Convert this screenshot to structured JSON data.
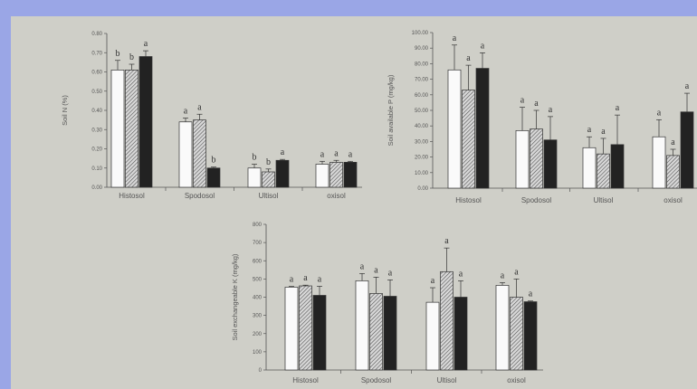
{
  "chart_data": [
    {
      "type": "bar",
      "ylabel": "Soil N (%)",
      "categories": [
        "Histosol",
        "Spodosol",
        "Ultisol",
        "oxisol"
      ],
      "yticks": [
        "0.00",
        "0.10",
        "0.20",
        "0.30",
        "0.40",
        "0.50",
        "0.60",
        "0.70",
        "0.80"
      ],
      "ylim": [
        0,
        0.8
      ],
      "series_styles": [
        "white",
        "hatched",
        "black"
      ],
      "values": [
        [
          0.61,
          0.61,
          0.68
        ],
        [
          0.34,
          0.35,
          0.1
        ],
        [
          0.1,
          0.08,
          0.14
        ],
        [
          0.12,
          0.13,
          0.13
        ]
      ],
      "errors": [
        [
          0.05,
          0.03,
          0.03
        ],
        [
          0.02,
          0.03,
          0.005
        ],
        [
          0.02,
          0.015,
          0.005
        ],
        [
          0.015,
          0.01,
          0.005
        ]
      ],
      "letters": [
        [
          "b",
          "b",
          "a"
        ],
        [
          "a",
          "a",
          "b"
        ],
        [
          "b",
          "b",
          "a"
        ],
        [
          "a",
          "a",
          "a"
        ]
      ]
    },
    {
      "type": "bar",
      "ylabel": "Soil available P (mg/kg)",
      "categories": [
        "Histosol",
        "Spodosol",
        "Ultisol",
        "oxisol"
      ],
      "yticks": [
        "0.00",
        "10.00",
        "20.00",
        "30.00",
        "40.00",
        "50.00",
        "60.00",
        "70.00",
        "80.00",
        "90.00",
        "100.00"
      ],
      "ylim": [
        0,
        100
      ],
      "series_styles": [
        "white",
        "hatched",
        "black"
      ],
      "values": [
        [
          76,
          63,
          77
        ],
        [
          37,
          38,
          31
        ],
        [
          26,
          22,
          28
        ],
        [
          33,
          21,
          49
        ]
      ],
      "errors": [
        [
          16,
          16,
          10
        ],
        [
          15,
          12,
          15
        ],
        [
          7,
          10,
          19
        ],
        [
          11,
          4,
          12
        ]
      ],
      "letters": [
        [
          "a",
          "a",
          "a"
        ],
        [
          "a",
          "a",
          "a"
        ],
        [
          "a",
          "a",
          "a"
        ],
        [
          "a",
          "a",
          "a"
        ]
      ]
    },
    {
      "type": "bar",
      "ylabel": "Soil exchangeable K (mg/kg)",
      "categories": [
        "Histosol",
        "Spodosol",
        "Ultisol",
        "oxisol"
      ],
      "yticks": [
        "0",
        "100",
        "200",
        "300",
        "400",
        "500",
        "600",
        "700",
        "800"
      ],
      "ylim": [
        0,
        800
      ],
      "series_styles": [
        "white",
        "hatched",
        "black"
      ],
      "values": [
        [
          455,
          462,
          410
        ],
        [
          490,
          420,
          405
        ],
        [
          372,
          540,
          400
        ],
        [
          465,
          400,
          375
        ]
      ],
      "errors": [
        [
          4,
          4,
          50
        ],
        [
          40,
          90,
          90
        ],
        [
          80,
          130,
          90
        ],
        [
          15,
          100,
          4
        ]
      ],
      "letters": [
        [
          "a",
          "a",
          "a"
        ],
        [
          "a",
          "a",
          "a"
        ],
        [
          "a",
          "a",
          "a"
        ],
        [
          "a",
          "a",
          "a"
        ]
      ]
    }
  ]
}
